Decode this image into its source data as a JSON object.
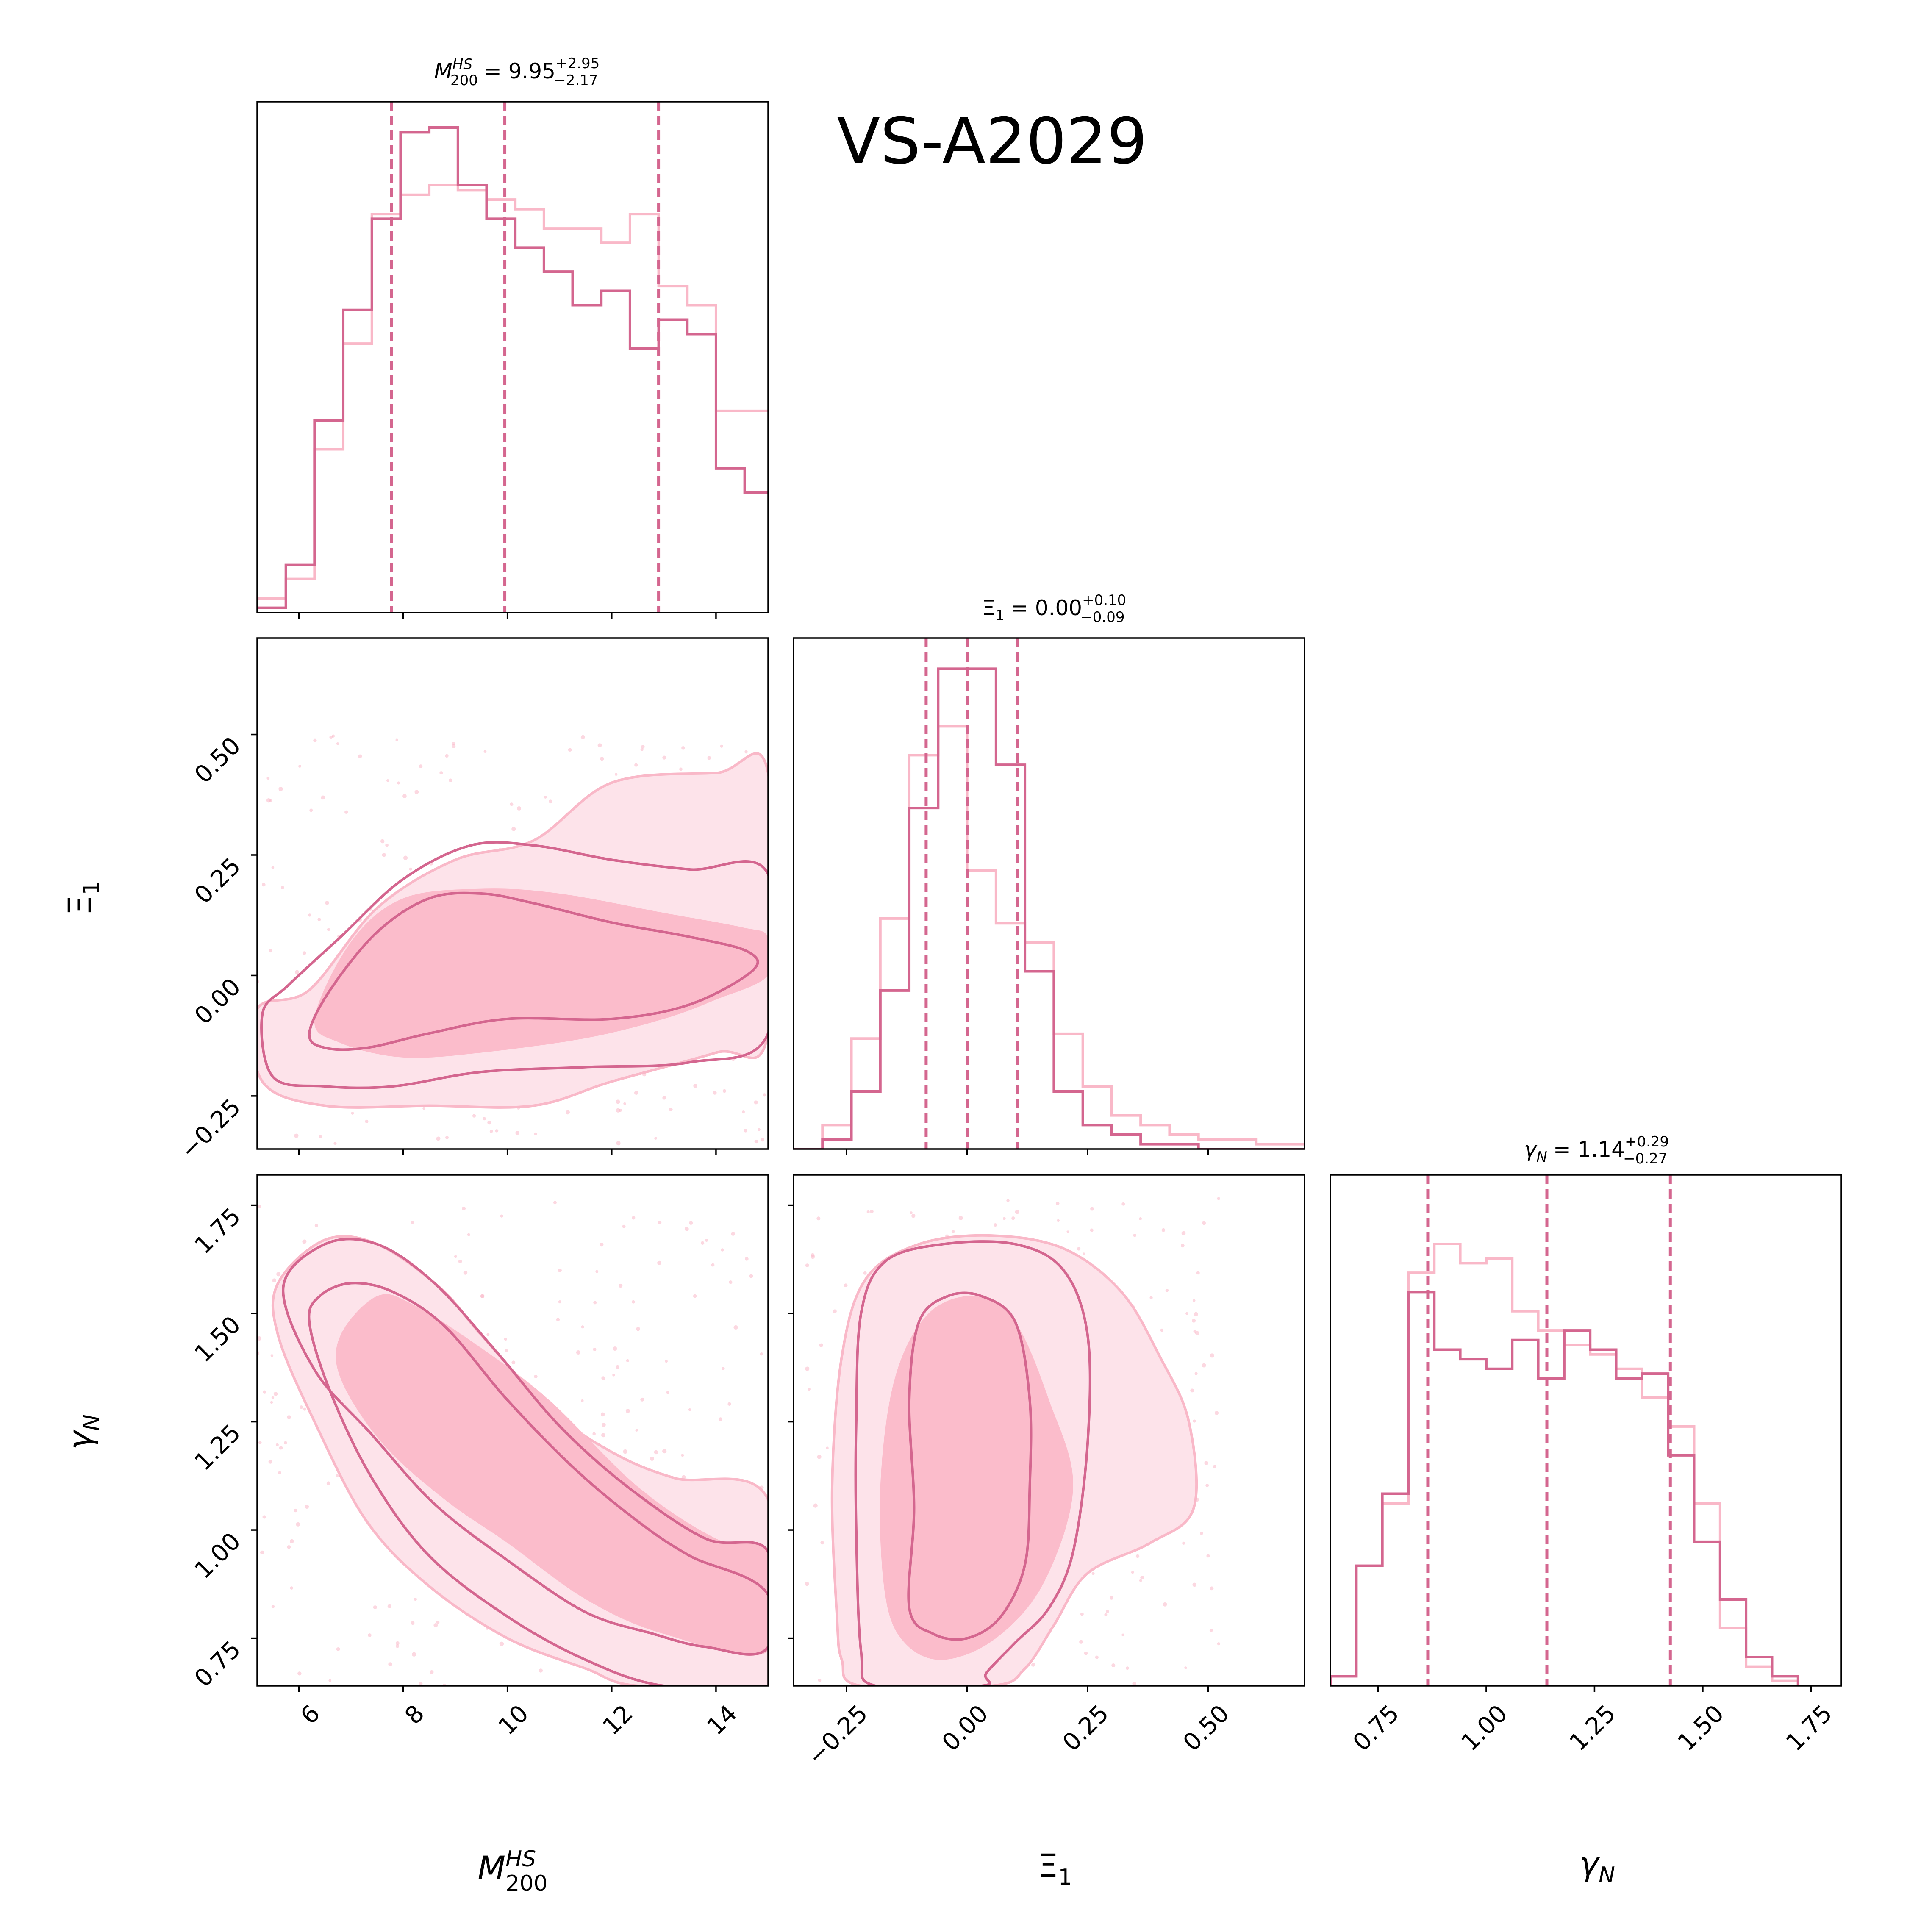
{
  "chart_data": {
    "type": "corner",
    "title": "VS-A2029",
    "colors": {
      "run_a": "#d4668f",
      "run_b": "#f9b8c8",
      "fill_outer": "#fde3ea",
      "fill_inner": "#fbbccb"
    },
    "parameters": [
      {
        "key": "M",
        "axis_label": "M",
        "label_sup": "HS",
        "label_sub": "200",
        "title_eq": "= 9.95",
        "title_plus": "+2.95",
        "title_minus": "−2.17",
        "median": 9.95,
        "q16": 7.78,
        "q84": 12.9,
        "range": [
          5.2,
          15.0
        ],
        "ticks": [
          6,
          8,
          10,
          12,
          14
        ],
        "tick_labels": [
          "6",
          "8",
          "10",
          "12",
          "14"
        ]
      },
      {
        "key": "Xi",
        "axis_label": "Ξ",
        "label_sup": "",
        "label_sub": "1",
        "title_eq": "= 0.00",
        "title_plus": "+0.10",
        "title_minus": "−0.09",
        "median": 0.0,
        "q16": -0.085,
        "q84": 0.105,
        "range": [
          -0.36,
          0.7
        ],
        "ticks": [
          -0.25,
          0.0,
          0.25,
          0.5
        ],
        "tick_labels": [
          "−0.25",
          "0.00",
          "0.25",
          "0.50"
        ]
      },
      {
        "key": "gamma",
        "axis_label": "γ",
        "label_sup": "",
        "label_sub": "N",
        "title_eq": "= 1.14",
        "title_plus": "+0.29",
        "title_minus": "−0.27",
        "median": 1.14,
        "q16": 0.865,
        "q84": 1.425,
        "range": [
          0.64,
          1.82
        ],
        "ticks": [
          0.75,
          1.0,
          1.25,
          1.5,
          1.75
        ],
        "tick_labels": [
          "0.75",
          "1.00",
          "1.25",
          "1.50",
          "1.75"
        ]
      }
    ],
    "histograms": {
      "M": {
        "run_a": {
          "edges": [
            5.2,
            5.75,
            6.3,
            6.85,
            7.4,
            7.95,
            8.5,
            9.05,
            9.6,
            10.15,
            10.7,
            11.25,
            11.8,
            12.35,
            12.9,
            13.45,
            14.0,
            14.55,
            15.0
          ],
          "counts": [
            0.01,
            0.1,
            0.4,
            0.63,
            0.82,
            1.0,
            1.01,
            0.89,
            0.82,
            0.76,
            0.71,
            0.64,
            0.67,
            0.55,
            0.61,
            0.58,
            0.3,
            0.25
          ]
        },
        "run_b": {
          "edges": [
            5.2,
            5.75,
            6.3,
            6.85,
            7.4,
            7.95,
            8.5,
            9.05,
            9.6,
            10.15,
            10.7,
            11.25,
            11.8,
            12.35,
            12.9,
            13.45,
            14.0,
            14.55,
            15.0
          ],
          "counts": [
            0.03,
            0.07,
            0.34,
            0.56,
            0.83,
            0.87,
            0.89,
            0.88,
            0.86,
            0.84,
            0.8,
            0.8,
            0.77,
            0.83,
            0.68,
            0.64,
            0.42,
            0.42
          ]
        }
      },
      "Xi": {
        "run_a": {
          "edges": [
            -0.36,
            -0.3,
            -0.24,
            -0.18,
            -0.12,
            -0.06,
            0.0,
            0.06,
            0.12,
            0.18,
            0.24,
            0.3,
            0.36,
            0.42,
            0.48,
            0.54,
            0.6,
            0.66,
            0.7
          ],
          "counts": [
            0.0,
            0.02,
            0.12,
            0.33,
            0.71,
            1.0,
            1.0,
            0.8,
            0.37,
            0.12,
            0.05,
            0.03,
            0.01,
            0.01,
            0.0,
            0.0,
            0.0,
            0.0
          ]
        },
        "run_b": {
          "edges": [
            -0.36,
            -0.3,
            -0.24,
            -0.18,
            -0.12,
            -0.06,
            0.0,
            0.06,
            0.12,
            0.18,
            0.24,
            0.3,
            0.36,
            0.42,
            0.48,
            0.54,
            0.6,
            0.66,
            0.7
          ],
          "counts": [
            0.0,
            0.05,
            0.23,
            0.48,
            0.82,
            0.88,
            0.58,
            0.47,
            0.43,
            0.24,
            0.13,
            0.07,
            0.05,
            0.03,
            0.02,
            0.02,
            0.01,
            0.01
          ]
        }
      },
      "gamma": {
        "run_a": {
          "edges": [
            0.64,
            0.7,
            0.76,
            0.82,
            0.88,
            0.94,
            1.0,
            1.06,
            1.12,
            1.18,
            1.24,
            1.3,
            1.36,
            1.42,
            1.48,
            1.54,
            1.6,
            1.66,
            1.72,
            1.82
          ],
          "counts": [
            0.02,
            0.25,
            0.4,
            0.82,
            0.7,
            0.68,
            0.66,
            0.72,
            0.64,
            0.74,
            0.7,
            0.64,
            0.65,
            0.48,
            0.3,
            0.18,
            0.06,
            0.02,
            0.0
          ]
        },
        "run_b": {
          "edges": [
            0.64,
            0.7,
            0.76,
            0.82,
            0.88,
            0.94,
            1.0,
            1.06,
            1.12,
            1.18,
            1.24,
            1.3,
            1.36,
            1.42,
            1.48,
            1.54,
            1.6,
            1.66,
            1.72,
            1.82
          ],
          "counts": [
            0.02,
            0.25,
            0.38,
            0.86,
            0.92,
            0.88,
            0.89,
            0.78,
            0.74,
            0.71,
            0.69,
            0.66,
            0.6,
            0.54,
            0.38,
            0.12,
            0.04,
            0.01,
            0.0
          ]
        }
      }
    },
    "contours": {
      "M_vs_Xi": {
        "run_b_outer": [
          [
            5.2,
            -0.07
          ],
          [
            6.2,
            -0.03
          ],
          [
            7.5,
            0.14
          ],
          [
            9.0,
            0.24
          ],
          [
            10.5,
            0.28
          ],
          [
            12.0,
            0.4
          ],
          [
            14.0,
            0.42
          ],
          [
            15.0,
            0.42
          ],
          [
            15.0,
            -0.12
          ],
          [
            14.0,
            -0.16
          ],
          [
            12.0,
            -0.22
          ],
          [
            10.5,
            -0.27
          ],
          [
            8.5,
            -0.27
          ],
          [
            6.5,
            -0.27
          ],
          [
            5.3,
            -0.22
          ]
        ],
        "run_b_inner": [
          [
            6.3,
            -0.09
          ],
          [
            7.0,
            0.07
          ],
          [
            8.0,
            0.16
          ],
          [
            9.5,
            0.18
          ],
          [
            11.0,
            0.17
          ],
          [
            13.0,
            0.13
          ],
          [
            14.5,
            0.1
          ],
          [
            15.0,
            0.08
          ],
          [
            15.0,
            0.0
          ],
          [
            14.0,
            -0.05
          ],
          [
            13.0,
            -0.09
          ],
          [
            11.5,
            -0.13
          ],
          [
            9.5,
            -0.16
          ],
          [
            8.0,
            -0.17
          ],
          [
            6.8,
            -0.14
          ]
        ],
        "run_a_outer": [
          [
            5.3,
            -0.08
          ],
          [
            5.8,
            -0.02
          ],
          [
            6.8,
            0.08
          ],
          [
            8.0,
            0.2
          ],
          [
            9.3,
            0.27
          ],
          [
            10.5,
            0.27
          ],
          [
            12.0,
            0.24
          ],
          [
            13.5,
            0.22
          ],
          [
            15.0,
            0.21
          ],
          [
            15.0,
            -0.12
          ],
          [
            13.5,
            -0.18
          ],
          [
            11.5,
            -0.19
          ],
          [
            9.5,
            -0.2
          ],
          [
            7.8,
            -0.23
          ],
          [
            6.5,
            -0.23
          ],
          [
            5.5,
            -0.21
          ]
        ],
        "run_a_inner": [
          [
            6.2,
            -0.12
          ],
          [
            6.6,
            -0.03
          ],
          [
            7.5,
            0.09
          ],
          [
            8.5,
            0.16
          ],
          [
            9.5,
            0.17
          ],
          [
            10.5,
            0.15
          ],
          [
            12.0,
            0.11
          ],
          [
            13.5,
            0.08
          ],
          [
            14.6,
            0.05
          ],
          [
            14.7,
            0.01
          ],
          [
            13.5,
            -0.06
          ],
          [
            12.0,
            -0.09
          ],
          [
            10.0,
            -0.09
          ],
          [
            8.5,
            -0.12
          ],
          [
            7.3,
            -0.15
          ],
          [
            6.5,
            -0.15
          ]
        ]
      },
      "M_vs_gamma": {
        "run_b_outer": [
          [
            5.6,
            1.57
          ],
          [
            6.5,
            1.67
          ],
          [
            7.5,
            1.66
          ],
          [
            8.7,
            1.56
          ],
          [
            9.5,
            1.45
          ],
          [
            10.8,
            1.28
          ],
          [
            12.0,
            1.18
          ],
          [
            13.2,
            1.12
          ],
          [
            15.0,
            1.07
          ],
          [
            15.0,
            0.64
          ],
          [
            12.5,
            0.64
          ],
          [
            11.5,
            0.68
          ],
          [
            10.0,
            0.75
          ],
          [
            8.5,
            0.87
          ],
          [
            7.3,
            1.02
          ],
          [
            6.3,
            1.25
          ],
          [
            5.6,
            1.45
          ]
        ],
        "run_b_inner": [
          [
            6.8,
            1.45
          ],
          [
            7.5,
            1.54
          ],
          [
            8.2,
            1.52
          ],
          [
            9.5,
            1.42
          ],
          [
            10.8,
            1.3
          ],
          [
            12.5,
            1.1
          ],
          [
            14.0,
            0.98
          ],
          [
            15.0,
            0.95
          ],
          [
            15.0,
            0.72
          ],
          [
            13.0,
            0.76
          ],
          [
            11.5,
            0.84
          ],
          [
            10.0,
            0.97
          ],
          [
            8.8,
            1.07
          ],
          [
            7.6,
            1.2
          ],
          [
            6.8,
            1.35
          ]
        ],
        "run_a_outer": [
          [
            5.7,
            1.56
          ],
          [
            6.5,
            1.66
          ],
          [
            7.5,
            1.66
          ],
          [
            8.6,
            1.57
          ],
          [
            9.8,
            1.41
          ],
          [
            11.0,
            1.24
          ],
          [
            12.3,
            1.1
          ],
          [
            13.8,
            0.98
          ],
          [
            15.0,
            0.95
          ],
          [
            15.0,
            0.73
          ],
          [
            13.8,
            0.73
          ],
          [
            12.8,
            0.76
          ],
          [
            11.5,
            0.81
          ],
          [
            10.0,
            0.93
          ],
          [
            8.6,
            1.06
          ],
          [
            7.4,
            1.22
          ],
          [
            6.3,
            1.37
          ]
        ],
        "run_a_inner": [
          [
            6.4,
            1.54
          ],
          [
            7.0,
            1.57
          ],
          [
            7.8,
            1.55
          ],
          [
            8.8,
            1.47
          ],
          [
            10.0,
            1.3
          ],
          [
            11.3,
            1.14
          ],
          [
            12.5,
            1.02
          ],
          [
            13.5,
            0.94
          ],
          [
            15.0,
            0.85
          ],
          [
            15.0,
            0.64
          ],
          [
            13.0,
            0.64
          ],
          [
            11.5,
            0.7
          ],
          [
            10.0,
            0.8
          ],
          [
            8.5,
            0.94
          ],
          [
            7.4,
            1.12
          ],
          [
            6.6,
            1.32
          ],
          [
            6.2,
            1.48
          ]
        ]
      },
      "Xi_vs_gamma": {
        "run_b_outer": [
          [
            -0.27,
            0.8
          ],
          [
            -0.28,
            1.1
          ],
          [
            -0.26,
            1.4
          ],
          [
            -0.21,
            1.58
          ],
          [
            -0.1,
            1.66
          ],
          [
            0.05,
            1.68
          ],
          [
            0.2,
            1.65
          ],
          [
            0.32,
            1.55
          ],
          [
            0.4,
            1.4
          ],
          [
            0.46,
            1.25
          ],
          [
            0.47,
            1.05
          ],
          [
            0.38,
            0.97
          ],
          [
            0.25,
            0.9
          ],
          [
            0.18,
            0.78
          ],
          [
            0.12,
            0.68
          ],
          [
            0.05,
            0.64
          ],
          [
            -0.22,
            0.64
          ],
          [
            -0.26,
            0.7
          ]
        ],
        "run_b_inner": [
          [
            -0.17,
            0.85
          ],
          [
            -0.18,
            1.1
          ],
          [
            -0.15,
            1.35
          ],
          [
            -0.08,
            1.5
          ],
          [
            0.02,
            1.54
          ],
          [
            0.1,
            1.48
          ],
          [
            0.17,
            1.3
          ],
          [
            0.22,
            1.1
          ],
          [
            0.16,
            0.88
          ],
          [
            0.06,
            0.75
          ],
          [
            -0.05,
            0.7
          ],
          [
            -0.13,
            0.74
          ]
        ],
        "run_a_outer": [
          [
            -0.22,
            0.72
          ],
          [
            -0.23,
            1.0
          ],
          [
            -0.23,
            1.25
          ],
          [
            -0.22,
            1.5
          ],
          [
            -0.17,
            1.62
          ],
          [
            -0.05,
            1.66
          ],
          [
            0.1,
            1.66
          ],
          [
            0.2,
            1.6
          ],
          [
            0.25,
            1.45
          ],
          [
            0.25,
            1.2
          ],
          [
            0.22,
            0.95
          ],
          [
            0.17,
            0.82
          ],
          [
            0.1,
            0.74
          ],
          [
            0.04,
            0.67
          ],
          [
            0.03,
            0.64
          ],
          [
            -0.19,
            0.64
          ]
        ],
        "run_a_inner": [
          [
            -0.12,
            0.82
          ],
          [
            -0.11,
            1.05
          ],
          [
            -0.12,
            1.3
          ],
          [
            -0.1,
            1.48
          ],
          [
            -0.04,
            1.54
          ],
          [
            0.03,
            1.54
          ],
          [
            0.1,
            1.48
          ],
          [
            0.13,
            1.3
          ],
          [
            0.13,
            1.1
          ],
          [
            0.12,
            0.92
          ],
          [
            0.07,
            0.8
          ],
          [
            0.0,
            0.75
          ],
          [
            -0.07,
            0.76
          ]
        ]
      }
    }
  }
}
